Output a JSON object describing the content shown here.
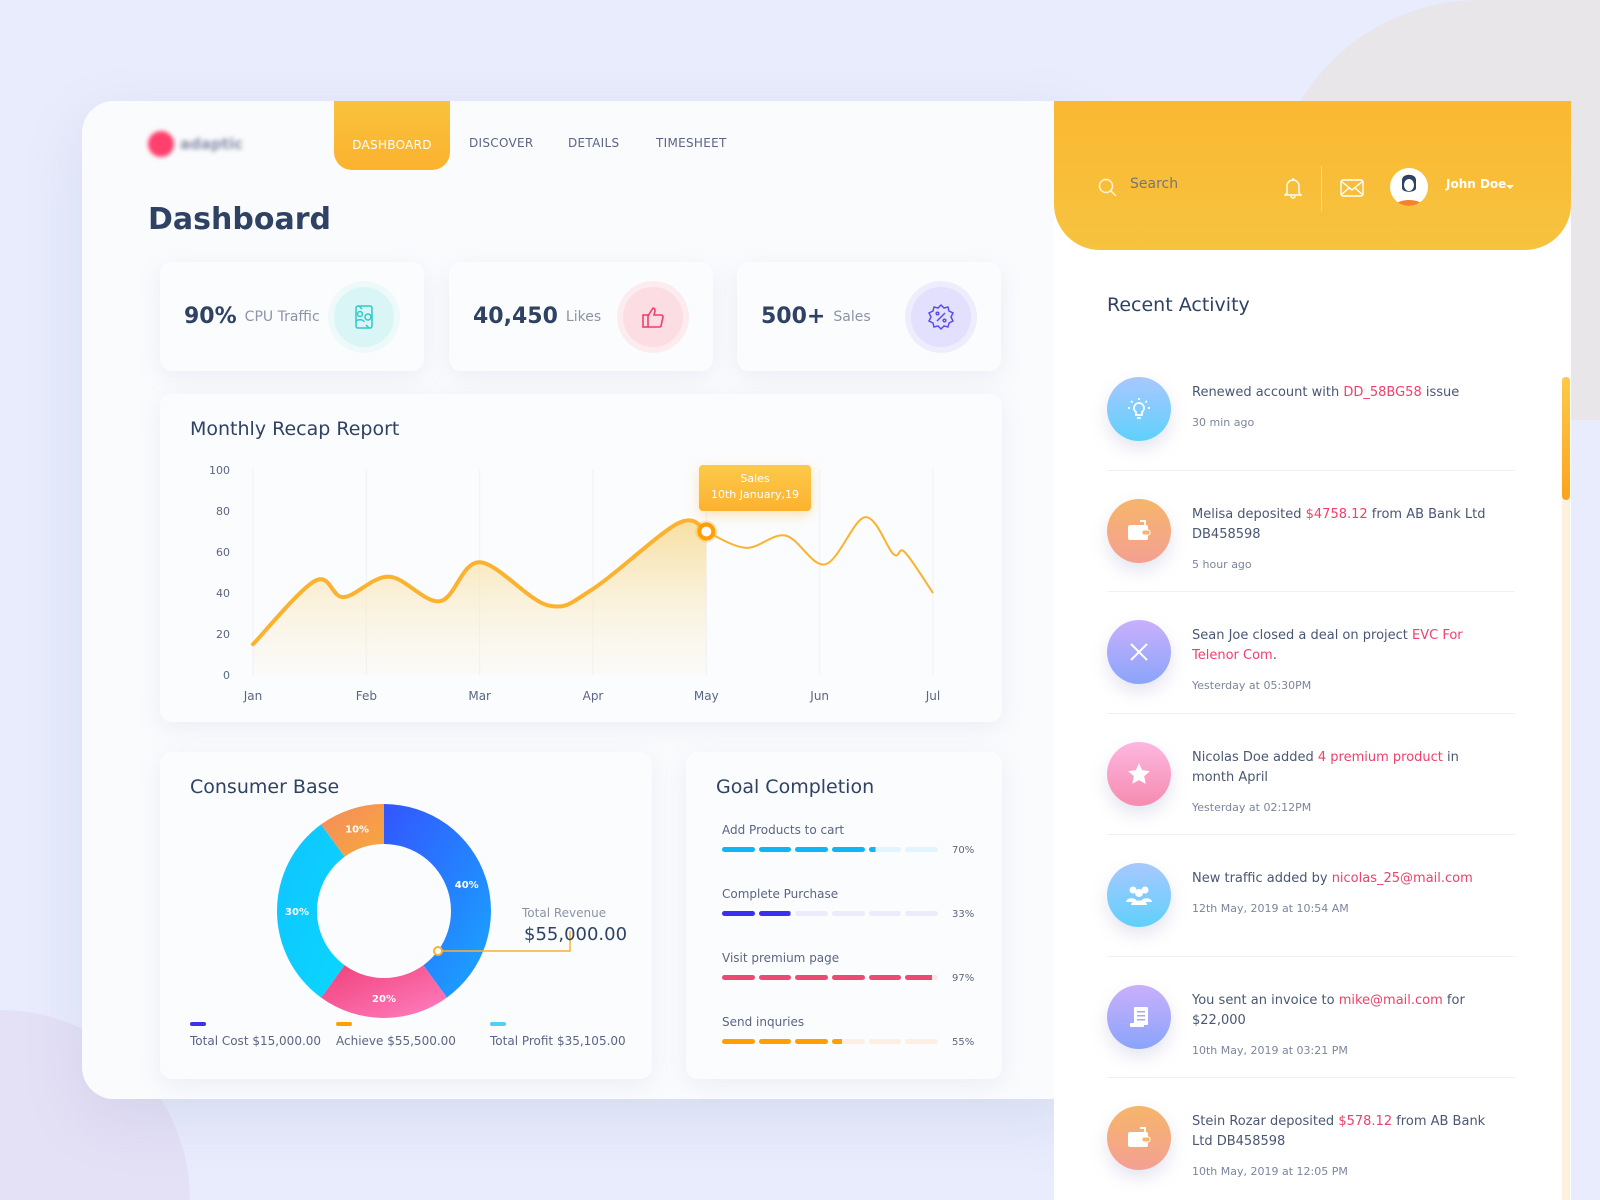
{
  "logo": {
    "text": "adaptic"
  },
  "nav": {
    "tabs": [
      {
        "label": "DASHBOARD",
        "active": true
      },
      {
        "label": "DISCOVER"
      },
      {
        "label": "DETAILS"
      },
      {
        "label": "TIMESHEET"
      }
    ]
  },
  "page_title": "Dashboard",
  "stats": [
    {
      "value": "90%",
      "label": "CPU Traffic",
      "icon": "exchange-icon",
      "color": "#2fc9c9"
    },
    {
      "value": "40,450",
      "label": "Likes",
      "icon": "thumbs-up-icon",
      "color": "#f0406b"
    },
    {
      "value": "500+",
      "label": "Sales",
      "icon": "discount-badge-icon",
      "color": "#5a4cf0"
    }
  ],
  "monthly": {
    "title": "Monthly Recap Report",
    "tooltip": {
      "line1": "Sales",
      "line2": "10th January,19"
    }
  },
  "chart_data": [
    {
      "type": "area",
      "title": "Monthly Recap Report",
      "ylim": [
        0,
        100
      ],
      "yticks": [
        0,
        20,
        40,
        60,
        80,
        100
      ],
      "categories": [
        "Jan",
        "Feb",
        "Mar",
        "Apr",
        "May",
        "Jun",
        "Jul"
      ],
      "x": [
        0,
        0.55,
        0.8,
        1.2,
        1.65,
        2.0,
        2.6,
        3.0,
        3.75,
        4.0,
        4.35,
        4.7,
        5.05,
        5.4,
        5.65,
        5.75,
        6
      ],
      "y": [
        15,
        46,
        38,
        48,
        36,
        55,
        34,
        42,
        74,
        70,
        62,
        68,
        54,
        77,
        59,
        60,
        40
      ],
      "highlight_index": 9,
      "fill_until_index": 9,
      "color": "#fbb22f",
      "grid": "vertical"
    },
    {
      "type": "pie",
      "title": "Consumer Base",
      "donut": true,
      "slices": [
        {
          "label": "40%",
          "value": 40,
          "colors": [
            "#3355ff",
            "#18a8ff"
          ]
        },
        {
          "label": "20%",
          "value": 20,
          "colors": [
            "#f0407a",
            "#ff80c0"
          ]
        },
        {
          "label": "30%",
          "value": 30,
          "colors": [
            "#10c4ff",
            "#0ad6ff"
          ]
        },
        {
          "label": "10%",
          "value": 10,
          "colors": [
            "#f58b5e",
            "#f6a93c"
          ]
        }
      ]
    }
  ],
  "consumer": {
    "title": "Consumer Base",
    "revenue_label": "Total Revenue",
    "revenue_value": "$55,000.00",
    "legend": [
      {
        "label": "Total Cost $15,000.00",
        "color": "#3b2ff0"
      },
      {
        "label": "Achieve $55,500.00",
        "color": "#ff9f00"
      },
      {
        "label": "Total Profit $35,105.00",
        "color": "#4fd0f6"
      }
    ]
  },
  "goals": {
    "title": "Goal Completion",
    "items": [
      {
        "label": "Add Products to cart",
        "percent": 70,
        "pct_label": "70%",
        "color": "#0fb5f5",
        "track": "#e2f4fd"
      },
      {
        "label": "Complete Purchase",
        "percent": 33,
        "pct_label": "33%",
        "color": "#3b2ff0",
        "track": "#ecebfb"
      },
      {
        "label": "Visit premium page",
        "percent": 97,
        "pct_label": "97%",
        "color": "#ec4a73",
        "track": "#fbe7ec"
      },
      {
        "label": "Send inquries",
        "percent": 55,
        "pct_label": "55%",
        "color": "#ff9f00",
        "track": "#fdf0e2"
      }
    ]
  },
  "header": {
    "search_placeholder": "Search",
    "user_name": "John Doe"
  },
  "recent": {
    "title": "Recent Activity",
    "items": [
      {
        "pre": "Renewed account with ",
        "hl": "DD_58BG58",
        "post": " issue",
        "time": "30 min ago",
        "icon": "lightbulb-icon",
        "grad": [
          "#a8c8ff",
          "#5fd0fb"
        ]
      },
      {
        "pre": "Melisa deposited ",
        "hl": "$4758.12",
        "post": " from AB Bank Ltd DB458598",
        "time": "5 hour ago",
        "icon": "wallet-icon",
        "grad": [
          "#f6b56a",
          "#f4a093"
        ]
      },
      {
        "pre": "Sean Joe closed a deal on project ",
        "hl": "EVC For Telenor Com",
        "post": ".",
        "time": "Yesterday at 05:30PM",
        "icon": "close-icon",
        "grad": [
          "#c9b0fb",
          "#8aa4fb"
        ]
      },
      {
        "pre": "Nicolas Doe added ",
        "hl": "4 premium product",
        "post": " in month April",
        "time": "Yesterday at 02:12PM",
        "icon": "star-icon",
        "grad": [
          "#fdb7e0",
          "#f68bb0"
        ]
      },
      {
        "pre": "New traffic added by ",
        "hl": "nicolas_25@mail.com",
        "post": "",
        "time": "12th May, 2019 at 10:54 AM",
        "icon": "users-icon",
        "grad": [
          "#a8c8ff",
          "#5fd0fb"
        ]
      },
      {
        "pre": "You sent an invoice to ",
        "hl": "mike@mail.com",
        "post": " for $22,000",
        "time": "10th May, 2019 at 03:21 PM",
        "icon": "invoice-icon",
        "grad": [
          "#c9b0fb",
          "#8aa4fb"
        ]
      },
      {
        "pre": "Stein Rozar deposited ",
        "hl": "$578.12",
        "post": " from AB Bank Ltd DB458598",
        "time": "10th May, 2019 at 12:05 PM",
        "icon": "wallet-icon",
        "grad": [
          "#f6b56a",
          "#f4a093"
        ]
      }
    ]
  }
}
